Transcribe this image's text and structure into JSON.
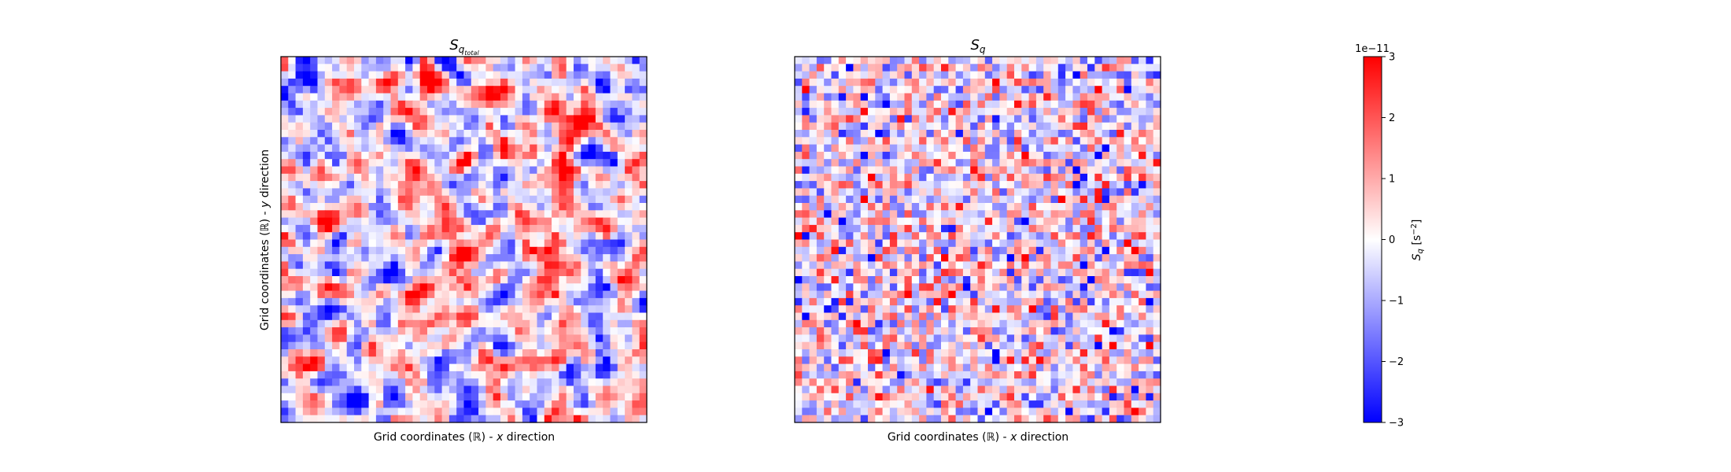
{
  "chart_data": [
    {
      "type": "heatmap",
      "title_base": "S",
      "title_sub": "q",
      "title_subsub": "total",
      "xlabel_pre": "Grid coordinates (",
      "xlabel_sym": "ℝ",
      "xlabel_post": ") - ",
      "xlabel_var": "x",
      "xlabel_end": " direction",
      "ylabel_pre": "Grid coordinates (",
      "ylabel_sym": "ℝ",
      "ylabel_post": ") - ",
      "ylabel_var": "y",
      "ylabel_end": " direction",
      "grid_cells": [
        50,
        50
      ],
      "colormap": "bwr",
      "vmin": -3e-11,
      "vmax": 3e-11,
      "smoothness": "smooth"
    },
    {
      "type": "heatmap",
      "title_base": "S",
      "title_sub": "q",
      "xlabel_pre": "Grid coordinates (",
      "xlabel_sym": "ℝ",
      "xlabel_post": ") - ",
      "xlabel_var": "x",
      "xlabel_end": " direction",
      "grid_cells": [
        50,
        50
      ],
      "colormap": "bwr",
      "vmin": -3e-11,
      "vmax": 3e-11,
      "smoothness": "rough"
    }
  ],
  "colorbar": {
    "ticks": [
      "−3",
      "−2",
      "−1",
      "0",
      "1",
      "2",
      "3"
    ],
    "tick_values": [
      -3,
      -2,
      -1,
      0,
      1,
      2,
      3
    ],
    "offset_label": "1e−11",
    "label_base": "S",
    "label_sub": "q",
    "label_unit_pre": " [s",
    "label_unit_sup": "−2",
    "label_unit_post": "]",
    "colors": {
      "low": "#0000ff",
      "mid": "#ffffff",
      "high": "#ff0000"
    }
  }
}
